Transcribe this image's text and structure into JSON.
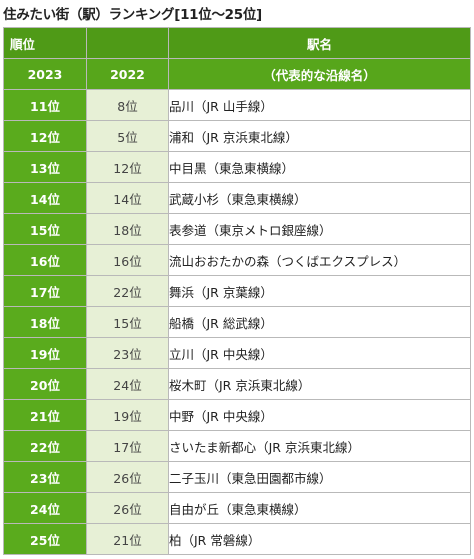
{
  "title": "住みたい街（駅）ランキング[11位～25位]",
  "header": {
    "rank_label": "順位",
    "station_label": "駅名",
    "year_current": "2023",
    "year_previous": "2022",
    "line_label": "（代表的な沿線名）"
  },
  "rows": [
    {
      "rank": "11位",
      "prev": "8位",
      "station": "品川（JR 山手線）"
    },
    {
      "rank": "12位",
      "prev": "5位",
      "station": "浦和（JR 京浜東北線）"
    },
    {
      "rank": "13位",
      "prev": "12位",
      "station": "中目黒（東急東横線）"
    },
    {
      "rank": "14位",
      "prev": "14位",
      "station": "武蔵小杉（東急東横線）"
    },
    {
      "rank": "15位",
      "prev": "18位",
      "station": "表参道（東京メトロ銀座線）"
    },
    {
      "rank": "16位",
      "prev": "16位",
      "station": "流山おおたかの森（つくばエクスプレス）"
    },
    {
      "rank": "17位",
      "prev": "22位",
      "station": "舞浜（JR 京葉線）"
    },
    {
      "rank": "18位",
      "prev": "15位",
      "station": "船橋（JR 総武線）"
    },
    {
      "rank": "19位",
      "prev": "23位",
      "station": "立川（JR 中央線）"
    },
    {
      "rank": "20位",
      "prev": "24位",
      "station": "桜木町（JR 京浜東北線）"
    },
    {
      "rank": "21位",
      "prev": "19位",
      "station": "中野（JR 中央線）"
    },
    {
      "rank": "22位",
      "prev": "17位",
      "station": "さいたま新都心（JR 京浜東北線）"
    },
    {
      "rank": "23位",
      "prev": "26位",
      "station": "二子玉川（東急田園都市線）"
    },
    {
      "rank": "24位",
      "prev": "26位",
      "station": "自由が丘（東急東横線）"
    },
    {
      "rank": "25位",
      "prev": "21位",
      "station": "柏（JR 常磐線）"
    }
  ]
}
